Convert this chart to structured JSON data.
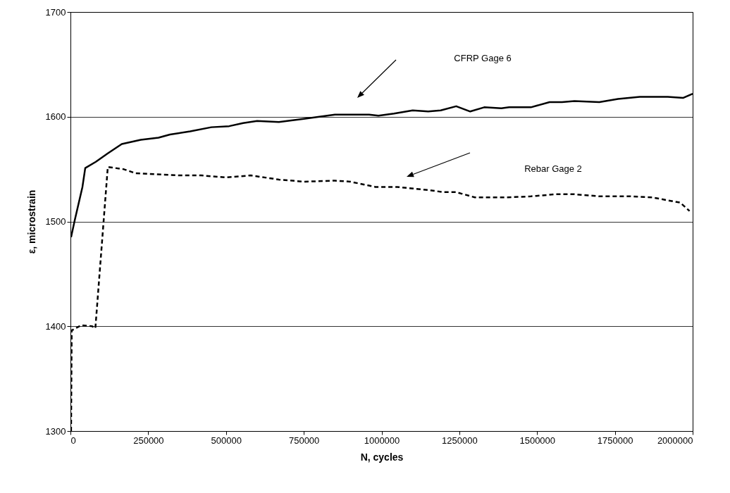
{
  "chart_data": {
    "type": "line",
    "xlabel": "N, cycles",
    "ylabel": "ε, microstrain",
    "xlim": [
      0,
      2000000
    ],
    "ylim": [
      1300,
      1700
    ],
    "xticks": [
      0,
      250000,
      500000,
      750000,
      1000000,
      1250000,
      1500000,
      1750000,
      2000000
    ],
    "yticks": [
      1300,
      1400,
      1500,
      1600,
      1700
    ],
    "grid": "y",
    "marker": "none",
    "series": [
      {
        "color": "#000000",
        "line_style": "solid",
        "x": [
          2000,
          13600,
          38500,
          47500,
          81500,
          120000,
          165000,
          226000,
          283000,
          320000,
          385000,
          453000,
          510000,
          555000,
          600000,
          670000,
          750000,
          800000,
          850000,
          960000,
          990000,
          1040000,
          1100000,
          1150000,
          1190000,
          1240000,
          1285000,
          1330000,
          1385000,
          1410000,
          1480000,
          1540000,
          1580000,
          1620000,
          1700000,
          1760000,
          1830000,
          1920000,
          1970000,
          2000000
        ],
        "values": [
          1485,
          1501,
          1533,
          1551,
          1557,
          1565,
          1574,
          1578,
          1580,
          1583,
          1586,
          1590,
          1591,
          1594,
          1596,
          1595,
          1598,
          1600,
          1602,
          1602,
          1601,
          1603,
          1606,
          1605,
          1606,
          1610,
          1605,
          1609,
          1608,
          1609,
          1609,
          1614,
          1614,
          1615,
          1614,
          1617,
          1619,
          1619,
          1618,
          1622
        ]
      },
      {
        "color": "#000000",
        "line_style": "dashed",
        "x": [
          2000,
          4000,
          35000,
          70000,
          80000,
          120000,
          170000,
          210000,
          280000,
          350000,
          420000,
          500000,
          580000,
          670000,
          750000,
          850000,
          900000,
          980000,
          1050000,
          1150000,
          1200000,
          1240000,
          1300000,
          1400000,
          1480000,
          1560000,
          1620000,
          1700000,
          1800000,
          1870000,
          1960000,
          1990000
        ],
        "values": [
          1300,
          1396,
          1401,
          1400,
          1398,
          1552,
          1550,
          1546,
          1545,
          1544,
          1544,
          1542,
          1544,
          1540,
          1538,
          1539,
          1538,
          1533,
          1533,
          1530,
          1528,
          1528,
          1523,
          1523,
          1524,
          1526,
          1526,
          1524,
          1524,
          1523,
          1518,
          1510
        ]
      }
    ],
    "annotations": [
      "CFRP Gage 6",
      "Rebar Gage 2"
    ]
  }
}
